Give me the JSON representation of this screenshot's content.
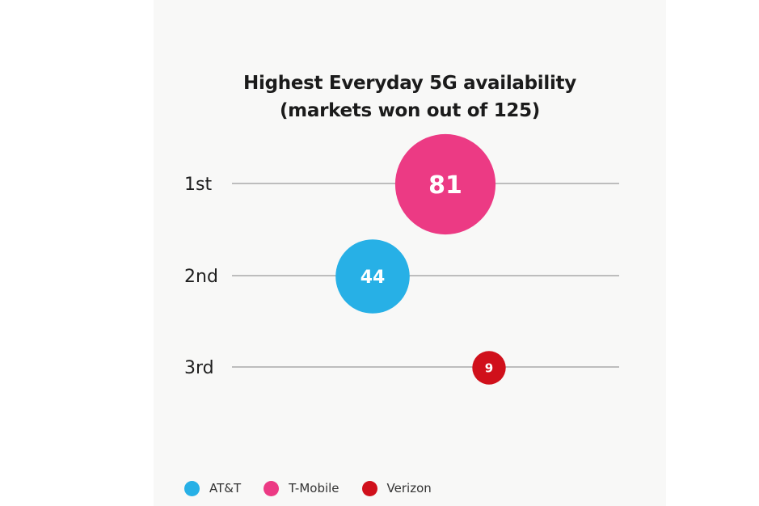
{
  "chart_data": {
    "type": "bubble",
    "title": "Highest Everyday 5G availability",
    "subtitle": "(markets won out of 125)",
    "categories": [
      "1st",
      "2nd",
      "3rd"
    ],
    "series": [
      {
        "name": "T-Mobile",
        "rank": "1st",
        "value": 81,
        "color": "#ec3a84"
      },
      {
        "name": "AT&T",
        "rank": "2nd",
        "value": 44,
        "color": "#27b0e6"
      },
      {
        "name": "Verizon",
        "rank": "3rd",
        "value": 9,
        "color": "#d0101b"
      }
    ],
    "legend": [
      {
        "name": "AT&T",
        "color": "#27b0e6"
      },
      {
        "name": "T-Mobile",
        "color": "#ec3a84"
      },
      {
        "name": "Verizon",
        "color": "#d0101b"
      }
    ],
    "legend_position": "bottom-left",
    "xlabel": "",
    "ylabel": ""
  }
}
